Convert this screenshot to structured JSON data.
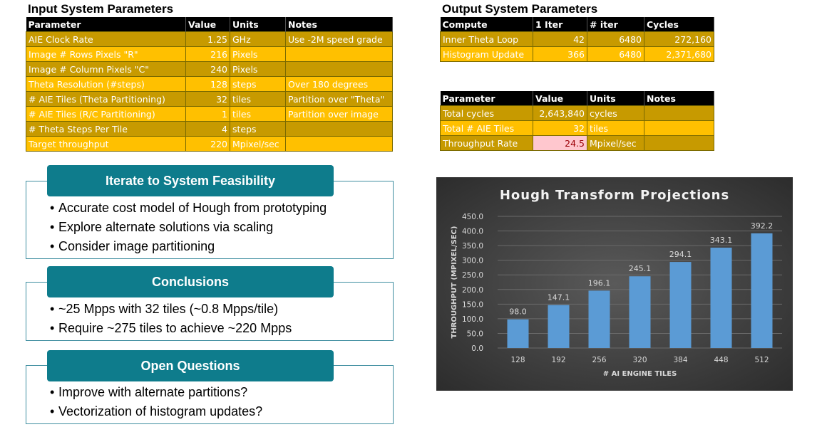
{
  "input_table": {
    "title": "Input System Parameters",
    "headers": [
      "Parameter",
      "Value",
      "Units",
      "Notes"
    ],
    "rows": [
      [
        "AIE Clock Rate",
        "1.25",
        "GHz",
        "Use -2M speed grade"
      ],
      [
        "Image # Rows Pixels \"R\"",
        "216",
        "Pixels",
        ""
      ],
      [
        "Image # Column Pixels \"C\"",
        "240",
        "Pixels",
        ""
      ],
      [
        "Theta Resolution (#steps)",
        "128",
        "steps",
        "Over 180 degrees"
      ],
      [
        "# AIE Tiles (Theta Partitioning)",
        "32",
        "tiles",
        "Partition over \"Theta\""
      ],
      [
        "# AIE Tiles (R/C Partitioning)",
        "1",
        "tiles",
        "Partition over image"
      ],
      [
        "# Theta Steps Per Tile",
        "4",
        "steps",
        ""
      ],
      [
        "Target throughput",
        "220",
        "Mpixel/sec",
        ""
      ]
    ]
  },
  "output_table": {
    "title": "Output System Parameters",
    "headers": [
      "Compute",
      "1 Iter",
      "# iter",
      "Cycles"
    ],
    "rows": [
      [
        "Inner Theta Loop",
        "42",
        "6480",
        "272,160"
      ],
      [
        "Histogram Update",
        "366",
        "6480",
        "2,371,680"
      ]
    ]
  },
  "result_table": {
    "headers": [
      "Parameter",
      "Value",
      "Units",
      "Notes"
    ],
    "rows": [
      [
        "Total cycles",
        "2,643,840",
        "cycles",
        ""
      ],
      [
        "Total # AIE Tiles",
        "32",
        "tiles",
        ""
      ],
      [
        "Throughput Rate",
        "24.5",
        "Mpixel/sec",
        ""
      ]
    ]
  },
  "callouts": [
    {
      "title": "Iterate to System Feasibility",
      "bullets": [
        "Accurate cost model of Hough from prototyping",
        "Explore alternate solutions via scaling",
        "Consider image partitioning"
      ]
    },
    {
      "title": "Conclusions",
      "bullets": [
        "~25 Mpps with 32 tiles (~0.8 Mpps/tile)",
        "Require ~275 tiles to achieve ~220 Mpps"
      ]
    },
    {
      "title": "Open Questions",
      "bullets": [
        "Improve with alternate partitions?",
        "Vectorization of histogram updates?"
      ]
    }
  ],
  "chart_data": {
    "type": "bar",
    "title": "Hough Transform Projections",
    "xlabel": "# AI ENGINE TILES",
    "ylabel": "THROUGHPUT (MPIXEL/SEC)",
    "categories": [
      "128",
      "192",
      "256",
      "320",
      "384",
      "448",
      "512"
    ],
    "values": [
      98.0,
      147.1,
      196.1,
      245.1,
      294.1,
      343.1,
      392.2
    ],
    "value_labels": [
      "98.0",
      "147.1",
      "196.1",
      "245.1",
      "294.1",
      "343.1",
      "392.2"
    ],
    "ylim": [
      0,
      450
    ],
    "yticks": [
      "0.0",
      "50.0",
      "100.0",
      "150.0",
      "200.0",
      "250.0",
      "300.0",
      "350.0",
      "400.0",
      "450.0"
    ],
    "grid": true,
    "legend": "none",
    "bar_color": "#5b9bd5",
    "background": "#3e3e3e"
  }
}
